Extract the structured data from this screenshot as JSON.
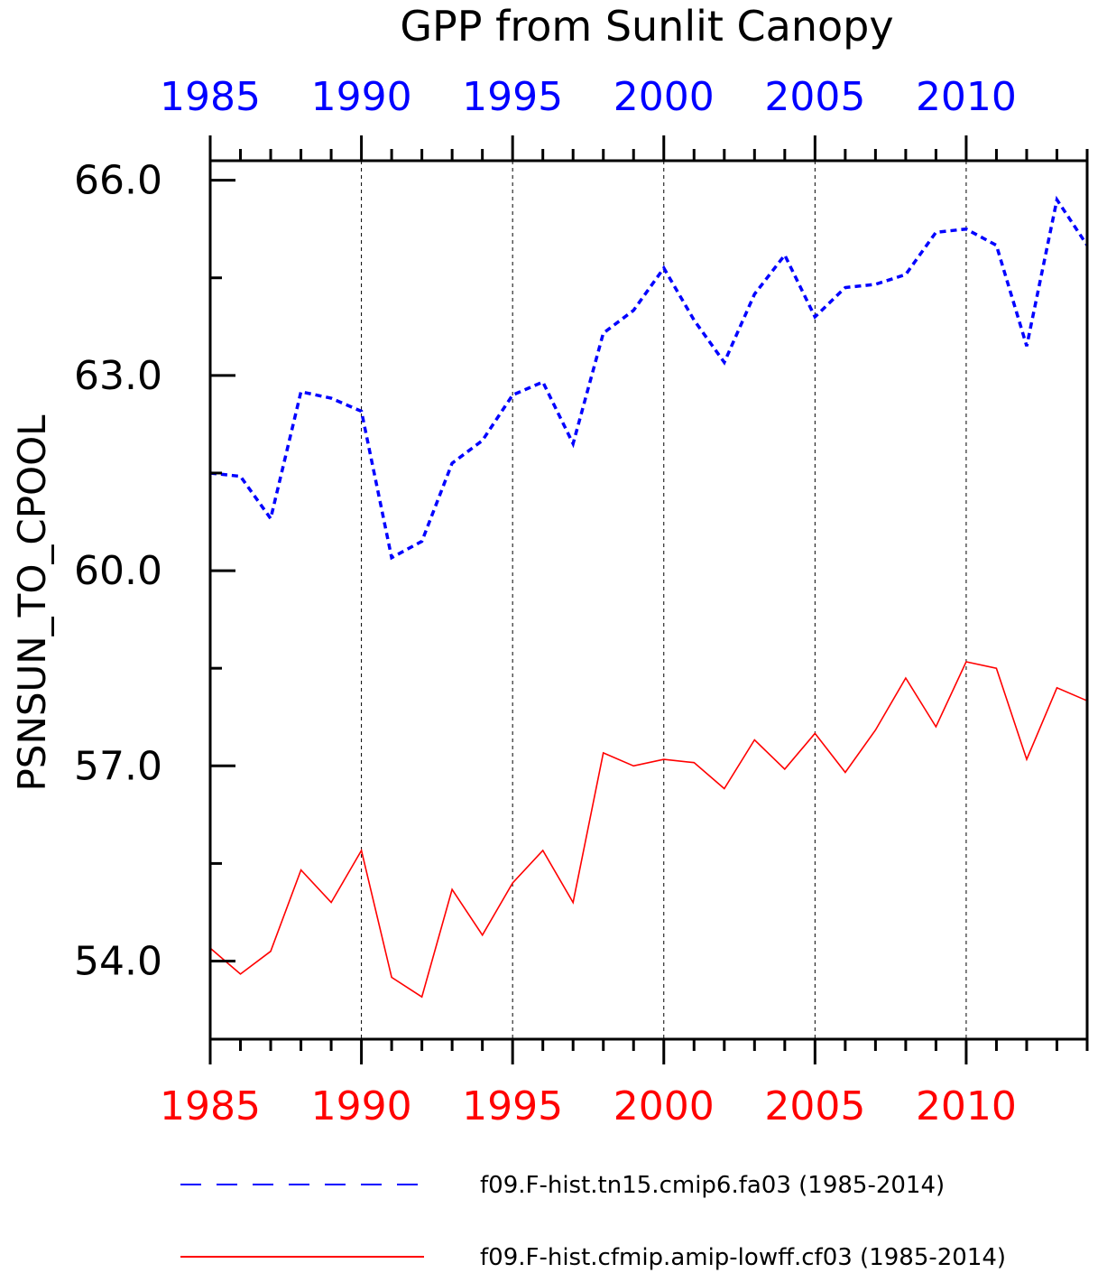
{
  "chart_data": {
    "type": "line",
    "title": "GPP from Sunlit Canopy",
    "ylabel": "PSNSUN_TO_CPOOL",
    "xlabel": "",
    "xlim": [
      1985,
      2014
    ],
    "ylim": [
      52.8,
      66.3
    ],
    "x_ticks": [
      1985,
      1990,
      1995,
      2000,
      2005,
      2010
    ],
    "x_tick_labels": [
      "1985",
      "1990",
      "1995",
      "2000",
      "2005",
      "2010"
    ],
    "y_ticks": [
      54.0,
      57.0,
      60.0,
      63.0,
      66.0
    ],
    "y_tick_labels": [
      "54.0",
      "57.0",
      "60.0",
      "63.0",
      "66.0"
    ],
    "top_axis_color": "#0000ff",
    "bottom_axis_color": "#ff0000",
    "grid": "vertical dashed lines at major x ticks",
    "legend_position": "bottom",
    "x": [
      1985,
      1986,
      1987,
      1988,
      1989,
      1990,
      1991,
      1992,
      1993,
      1994,
      1995,
      1996,
      1997,
      1998,
      1999,
      2000,
      2001,
      2002,
      2003,
      2004,
      2005,
      2006,
      2007,
      2008,
      2009,
      2010,
      2011,
      2012,
      2013,
      2014
    ],
    "series": [
      {
        "name": "f09.F-hist.tn15.cmip6.fa03 (1985-2014)",
        "color": "#0000ff",
        "style": "dashed",
        "values": [
          61.5,
          61.45,
          60.8,
          62.75,
          62.65,
          62.45,
          60.2,
          60.45,
          61.65,
          62.0,
          62.7,
          62.9,
          61.95,
          63.65,
          64.0,
          64.65,
          63.85,
          63.2,
          64.25,
          64.85,
          63.9,
          64.35,
          64.4,
          64.55,
          65.2,
          65.25,
          65.0,
          63.45,
          65.7,
          65.0
        ]
      },
      {
        "name": "f09.F-hist.cfmip.amip-lowff.cf03 (1985-2014)",
        "color": "#ff0000",
        "style": "solid",
        "values": [
          54.2,
          53.8,
          54.15,
          55.4,
          54.9,
          55.7,
          53.75,
          53.45,
          55.1,
          54.4,
          55.2,
          55.7,
          54.9,
          57.2,
          57.0,
          57.1,
          57.05,
          56.65,
          57.4,
          56.95,
          57.5,
          56.9,
          57.55,
          58.35,
          57.6,
          58.6,
          58.5,
          57.1,
          58.2,
          58.0
        ]
      }
    ]
  }
}
